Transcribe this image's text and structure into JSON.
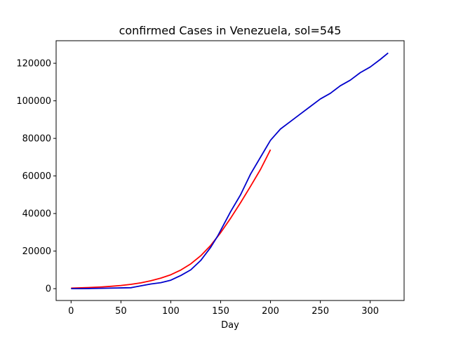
{
  "chart_data": {
    "type": "line",
    "title": "confirmed Cases in Venezuela, sol=545",
    "xlabel": "Day",
    "ylabel": "",
    "xlim": [
      -15,
      334
    ],
    "ylim": [
      -6300,
      132000
    ],
    "x_ticks": [
      0,
      50,
      100,
      150,
      200,
      250,
      300
    ],
    "x_tick_labels": [
      "0",
      "50",
      "100",
      "150",
      "200",
      "250",
      "300"
    ],
    "y_ticks": [
      0,
      20000,
      40000,
      60000,
      80000,
      100000,
      120000
    ],
    "y_tick_labels": [
      "0",
      "20000",
      "40000",
      "60000",
      "80000",
      "100000",
      "120000"
    ],
    "grid": false,
    "legend": "none",
    "series": [
      {
        "color": "#ff0000",
        "x": [
          0,
          10,
          20,
          30,
          40,
          50,
          60,
          70,
          80,
          90,
          100,
          110,
          120,
          130,
          140,
          150,
          160,
          170,
          180,
          190,
          200
        ],
        "y": [
          300,
          450,
          650,
          900,
          1250,
          1700,
          2300,
          3100,
          4200,
          5600,
          7400,
          9900,
          13200,
          17500,
          23000,
          29800,
          37500,
          45800,
          54500,
          63500,
          74000
        ]
      },
      {
        "color": "#0000cc",
        "x": [
          0,
          10,
          20,
          30,
          40,
          50,
          60,
          62,
          70,
          80,
          90,
          100,
          110,
          120,
          130,
          140,
          147,
          155,
          160,
          170,
          180,
          190,
          200,
          210,
          220,
          230,
          240,
          250,
          260,
          270,
          280,
          290,
          300,
          310,
          318
        ],
        "y": [
          0,
          0,
          100,
          200,
          300,
          400,
          500,
          700,
          1500,
          2500,
          3200,
          4500,
          7000,
          10000,
          15000,
          22000,
          28000,
          36000,
          41000,
          50000,
          61000,
          70000,
          79000,
          85000,
          89000,
          93000,
          97000,
          101000,
          104000,
          108000,
          111000,
          115000,
          118000,
          122000,
          125500
        ]
      }
    ]
  }
}
